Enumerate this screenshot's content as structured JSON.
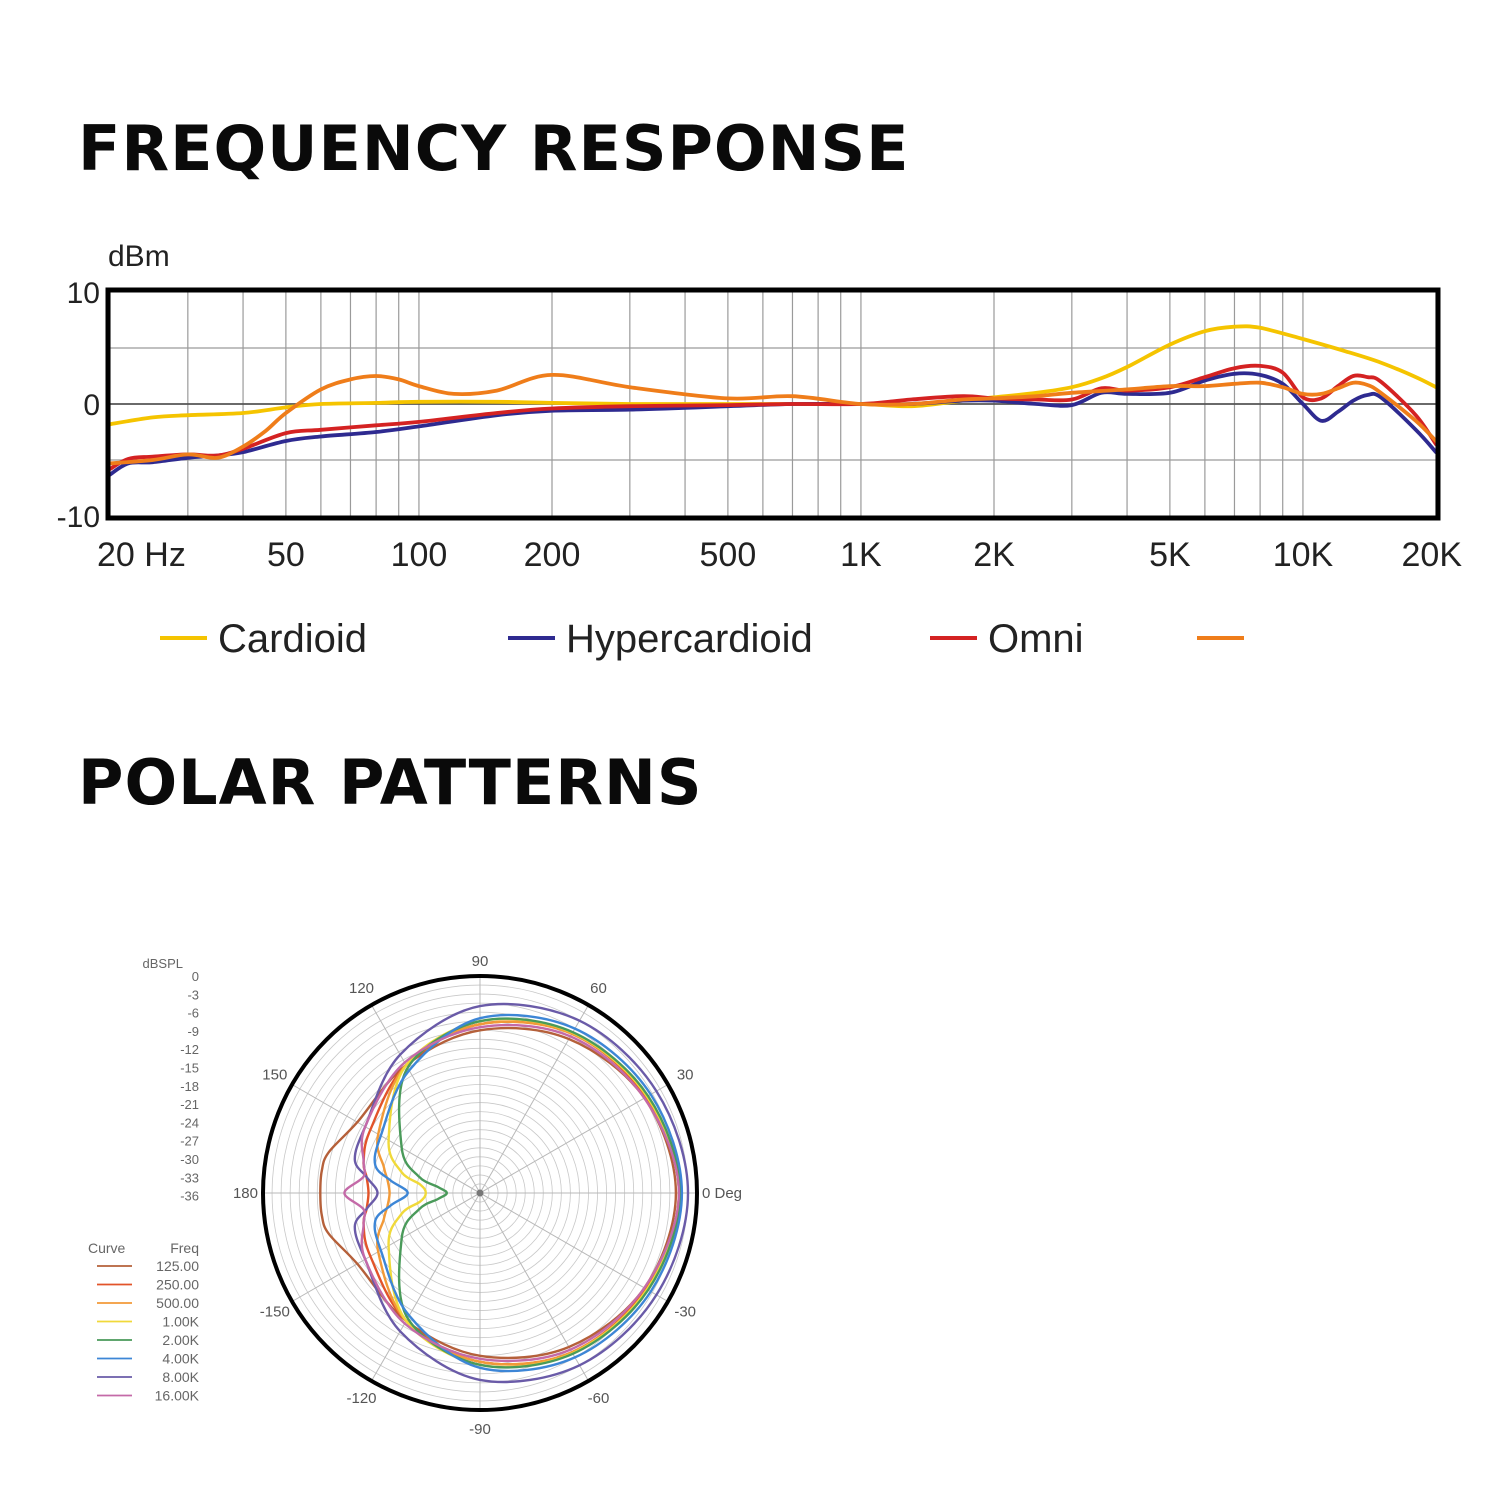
{
  "sections": {
    "frequency_title": "FREQUENCY RESPONSE",
    "polar_title": "POLAR PATTERNS"
  },
  "chart_data": [
    {
      "type": "line",
      "title": "FREQUENCY RESPONSE",
      "ylabel": "dBm",
      "xlabel": "",
      "x_scale": "log",
      "xlim": [
        20,
        20000
      ],
      "ylim": [
        -10,
        10
      ],
      "grid": true,
      "legend_placement": "bottom",
      "y_ticks": [
        {
          "value": 10,
          "label": "10"
        },
        {
          "value": 0,
          "label": "0"
        },
        {
          "value": -10,
          "label": "-10"
        }
      ],
      "x_ticks": [
        {
          "value": 20,
          "label": "20  Hz"
        },
        {
          "value": 50,
          "label": "50"
        },
        {
          "value": 100,
          "label": "100"
        },
        {
          "value": 200,
          "label": "200"
        },
        {
          "value": 500,
          "label": "500"
        },
        {
          "value": 1000,
          "label": "1K"
        },
        {
          "value": 2000,
          "label": "2K"
        },
        {
          "value": 5000,
          "label": "5K"
        },
        {
          "value": 10000,
          "label": "10K"
        },
        {
          "value": 20000,
          "label": "20K"
        }
      ],
      "series": [
        {
          "name": "Cardioid",
          "color": "#f5c400",
          "x": [
            20,
            25,
            30,
            40,
            50,
            60,
            80,
            100,
            150,
            200,
            300,
            500,
            700,
            1000,
            1300,
            1700,
            2000,
            2500,
            3000,
            3500,
            4000,
            5000,
            6000,
            7000,
            8000,
            10000,
            12500,
            15000,
            18000,
            20000
          ],
          "y": [
            -1.8,
            -1.2,
            -1.0,
            -0.8,
            -0.3,
            0.0,
            0.1,
            0.2,
            0.2,
            0.1,
            0.0,
            0.0,
            0.0,
            0.0,
            -0.2,
            0.3,
            0.6,
            1.0,
            1.5,
            2.3,
            3.3,
            5.3,
            6.5,
            6.9,
            6.8,
            5.8,
            4.7,
            3.7,
            2.4,
            1.5
          ]
        },
        {
          "name": "Hypercardioid",
          "color": "#2e2a90",
          "x": [
            20,
            22,
            25,
            30,
            35,
            40,
            50,
            60,
            80,
            100,
            150,
            200,
            300,
            500,
            700,
            1000,
            1300,
            1700,
            2000,
            2500,
            3000,
            3500,
            4000,
            5000,
            6000,
            7000,
            8000,
            9000,
            10000,
            11000,
            12000,
            13000,
            14000,
            15000,
            18000,
            20000
          ],
          "y": [
            -6.3,
            -5.3,
            -5.2,
            -4.8,
            -4.6,
            -4.3,
            -3.3,
            -2.9,
            -2.5,
            -2.0,
            -1.0,
            -0.6,
            -0.5,
            -0.2,
            0.0,
            0.0,
            0.0,
            0.3,
            0.3,
            0.0,
            -0.1,
            1.0,
            0.9,
            1.0,
            2.1,
            2.7,
            2.6,
            1.8,
            0.0,
            -1.5,
            -0.7,
            0.3,
            0.8,
            0.6,
            -2.3,
            -4.3
          ]
        },
        {
          "name": "Omni",
          "color": "#d42222",
          "x": [
            20,
            22,
            25,
            30,
            35,
            40,
            50,
            60,
            80,
            100,
            150,
            200,
            300,
            500,
            700,
            1000,
            1300,
            1700,
            2000,
            2500,
            3000,
            3500,
            4000,
            5000,
            6000,
            7000,
            8000,
            9000,
            10000,
            11000,
            12000,
            13000,
            14000,
            15000,
            18000,
            20000
          ],
          "y": [
            -5.8,
            -4.9,
            -4.7,
            -4.5,
            -4.6,
            -4.0,
            -2.6,
            -2.3,
            -1.9,
            -1.6,
            -0.8,
            -0.4,
            -0.2,
            -0.1,
            0.0,
            0.0,
            0.4,
            0.7,
            0.5,
            0.4,
            0.4,
            1.4,
            1.2,
            1.5,
            2.4,
            3.2,
            3.4,
            2.8,
            0.6,
            0.5,
            1.6,
            2.5,
            2.4,
            2.0,
            -1.0,
            -3.6
          ]
        },
        {
          "name": "",
          "color": "#ef7d1a",
          "x": [
            20,
            25,
            30,
            35,
            40,
            45,
            50,
            60,
            70,
            80,
            90,
            100,
            120,
            150,
            200,
            300,
            500,
            700,
            1000,
            1300,
            1700,
            2000,
            2500,
            3000,
            4000,
            5000,
            6000,
            7000,
            8000,
            9000,
            10000,
            11000,
            12000,
            13000,
            14000,
            15000,
            18000,
            20000
          ],
          "y": [
            -5.3,
            -5.0,
            -4.5,
            -4.8,
            -3.8,
            -2.4,
            -0.8,
            1.3,
            2.2,
            2.5,
            2.2,
            1.6,
            0.9,
            1.2,
            2.6,
            1.5,
            0.5,
            0.7,
            0.0,
            0.0,
            0.4,
            0.5,
            0.7,
            1.0,
            1.3,
            1.6,
            1.6,
            1.8,
            1.9,
            1.5,
            0.9,
            0.9,
            1.4,
            1.9,
            1.7,
            1.0,
            -1.5,
            -3.3
          ]
        }
      ]
    },
    {
      "type": "polar",
      "title": "",
      "unit_label": "dBSPL",
      "angle_unit_label": "Deg",
      "r_ticks": [
        "0",
        "-3",
        "-6",
        "-9",
        "-12",
        "-15",
        "-18",
        "-21",
        "-24",
        "-27",
        "-30",
        "-33",
        "-36"
      ],
      "rlim": [
        -36,
        0
      ],
      "angle_labels": [
        {
          "deg": 0,
          "label": "0 Deg"
        },
        {
          "deg": 30,
          "label": "30"
        },
        {
          "deg": 60,
          "label": "60"
        },
        {
          "deg": 90,
          "label": "90"
        },
        {
          "deg": 120,
          "label": "120"
        },
        {
          "deg": 150,
          "label": "150"
        },
        {
          "deg": 180,
          "label": "180"
        },
        {
          "deg": -150,
          "label": "-150"
        },
        {
          "deg": -120,
          "label": "-120"
        },
        {
          "deg": -90,
          "label": "-90"
        },
        {
          "deg": -60,
          "label": "-60"
        },
        {
          "deg": -30,
          "label": "-30"
        }
      ],
      "legend_header": {
        "curve": "Curve",
        "freq": "Freq"
      },
      "legend_placement": "left",
      "angles_deg": [
        0,
        30,
        60,
        90,
        120,
        150,
        165,
        172,
        180
      ],
      "series": [
        {
          "name": "125.00",
          "color": "#b5603a",
          "values": [
            -3.5,
            -4.5,
            -6.5,
            -9.0,
            -11.5,
            -12.5,
            -10.0,
            -9.5,
            -9.5
          ]
        },
        {
          "name": "250.00",
          "color": "#e2542a",
          "values": [
            -3.0,
            -4.2,
            -5.5,
            -8.0,
            -11.5,
            -15.0,
            -16.0,
            -17.0,
            -17.5
          ]
        },
        {
          "name": "500.00",
          "color": "#f29a38",
          "values": [
            -3.0,
            -4.0,
            -5.5,
            -8.0,
            -11.5,
            -16.5,
            -19.5,
            -20.5,
            -21.0
          ]
        },
        {
          "name": "1.00K",
          "color": "#f0d93a",
          "values": [
            -2.8,
            -4.0,
            -5.3,
            -7.5,
            -11.5,
            -18.5,
            -22.5,
            -26.0,
            -27.0
          ]
        },
        {
          "name": "2.00K",
          "color": "#4a9a5a",
          "values": [
            -2.8,
            -3.8,
            -5.2,
            -7.5,
            -12.0,
            -21.0,
            -25.5,
            -29.0,
            -30.5
          ]
        },
        {
          "name": "4.00K",
          "color": "#3d86d6",
          "values": [
            -2.5,
            -3.3,
            -4.5,
            -7.0,
            -12.5,
            -17.0,
            -18.0,
            -21.0,
            -24.0
          ]
        },
        {
          "name": "8.00K",
          "color": "#6a5ba8",
          "values": [
            -1.5,
            -2.2,
            -3.0,
            -5.0,
            -9.5,
            -14.0,
            -14.5,
            -17.0,
            -19.0
          ]
        },
        {
          "name": "16.00K",
          "color": "#c46aa8",
          "values": [
            -3.0,
            -4.5,
            -6.0,
            -8.5,
            -11.0,
            -14.0,
            -16.0,
            -16.5,
            -13.5
          ]
        }
      ]
    }
  ]
}
